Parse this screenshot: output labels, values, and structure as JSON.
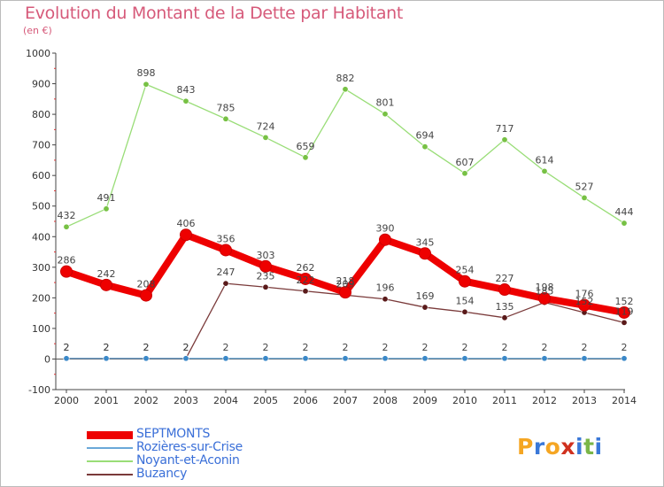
{
  "title": "Evolution du Montant de la Dette par Habitant",
  "subtitle": "(en €)",
  "logo": {
    "letters": [
      "P",
      "r",
      "o",
      "x",
      "i",
      "t",
      "i"
    ],
    "colors": [
      "#f5a623",
      "#3a78d8",
      "#f5a623",
      "#d0311f",
      "#3a78d8",
      "#7ab648",
      "#3a78d8"
    ]
  },
  "chart_data": {
    "type": "line",
    "x": [
      2000,
      2001,
      2002,
      2003,
      2004,
      2005,
      2006,
      2007,
      2008,
      2009,
      2010,
      2011,
      2012,
      2013,
      2014
    ],
    "ylim": [
      -100,
      1000
    ],
    "yticks": [
      -100,
      0,
      100,
      200,
      300,
      400,
      500,
      600,
      700,
      800,
      900,
      1000
    ],
    "grid": false,
    "legend_position": "bottom-left",
    "series": [
      {
        "name": "Noyant-et-Aconin",
        "color": "#99dd77",
        "marker": "#77c144",
        "width": 1.3,
        "r": 3.2,
        "values": [
          432,
          491,
          898,
          843,
          785,
          724,
          659,
          882,
          801,
          694,
          607,
          717,
          614,
          527,
          444
        ]
      },
      {
        "name": "Buzancy",
        "color": "#7a3a3a",
        "marker": "#5a1a1a",
        "width": 1.3,
        "r": 3.2,
        "values": [
          2,
          2,
          2,
          2,
          247,
          235,
          222,
          209,
          196,
          169,
          154,
          135,
          185,
          152,
          119
        ]
      },
      {
        "name": "Rozières-sur-Crise",
        "color": "#6aa8d8",
        "marker": "#3a88c8",
        "width": 1.3,
        "r": 3.2,
        "values": [
          2,
          2,
          2,
          2,
          2,
          2,
          2,
          2,
          2,
          2,
          2,
          2,
          2,
          2,
          2
        ]
      },
      {
        "name": "SEPTMONTS",
        "color": "#ee0000",
        "marker": "#ee0000",
        "width": 8,
        "r": 6.5,
        "values": [
          286,
          242,
          208,
          406,
          356,
          303,
          262,
          218,
          390,
          345,
          254,
          227,
          198,
          176,
          152
        ]
      }
    ]
  }
}
